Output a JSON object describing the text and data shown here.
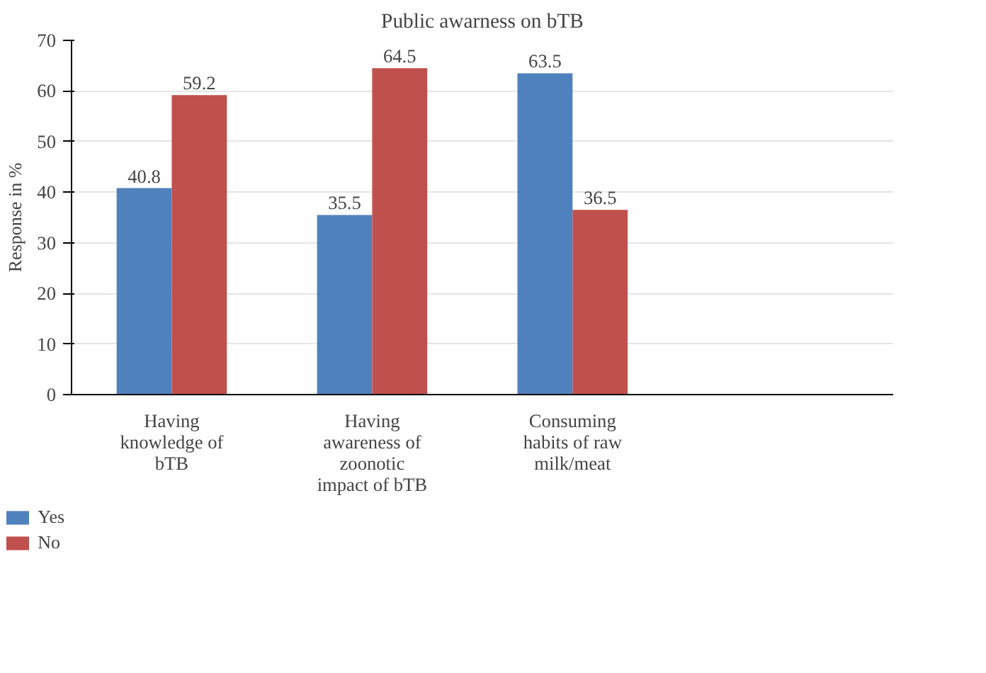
{
  "chart_data": {
    "type": "bar",
    "title": "Public awarness on bTB",
    "ylabel": "Response in %",
    "categories": [
      "Having knowledge of bTB",
      "Having awareness of zoonotic impact of bTB",
      "Consuming habits of raw milk/meat"
    ],
    "series": [
      {
        "name": "Yes",
        "color": "#4f81bd",
        "values": [
          40.8,
          35.5,
          63.5
        ]
      },
      {
        "name": "No",
        "color": "#c0504d",
        "values": [
          59.2,
          64.5,
          36.5
        ]
      }
    ],
    "ylim": [
      0,
      70
    ],
    "yticks": [
      0,
      10,
      20,
      30,
      40,
      50,
      60,
      70
    ],
    "grid": "y",
    "legend": "bottom left",
    "data_labels": true
  }
}
